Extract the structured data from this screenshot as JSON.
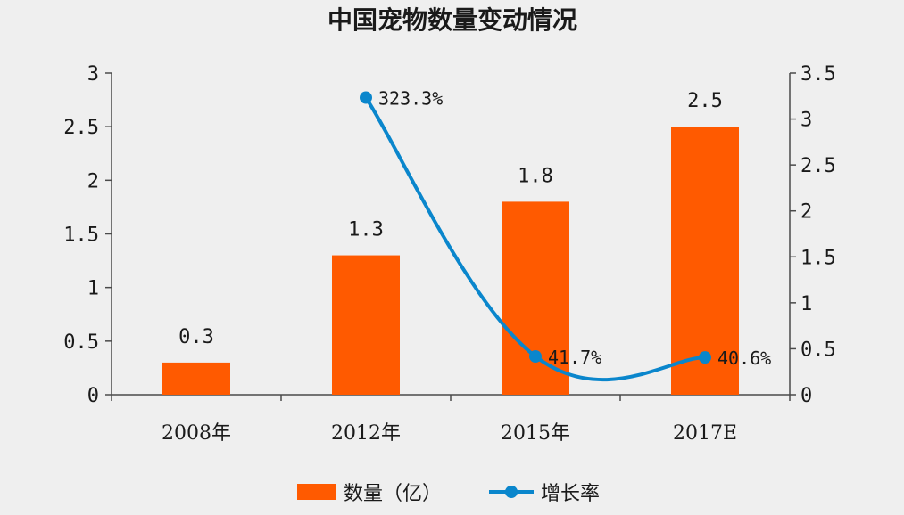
{
  "chart_data": {
    "type": "bar",
    "title": "中国宠物数量变动情况",
    "categories": [
      "2008年",
      "2012年",
      "2015年",
      "2017E"
    ],
    "series": [
      {
        "name": "数量（亿）",
        "type": "bar",
        "axis": "left",
        "color": "#ff5a00",
        "values": [
          0.3,
          1.3,
          1.8,
          2.5
        ],
        "labels": [
          "0.3",
          "1.3",
          "1.8",
          "2.5"
        ]
      },
      {
        "name": "增长率",
        "type": "line",
        "axis": "right",
        "color": "#0a86cc",
        "values": [
          null,
          3.233,
          0.417,
          0.406
        ],
        "labels": [
          "",
          "323.3%",
          "41.7%",
          "40.6%"
        ]
      }
    ],
    "y_left": {
      "min": 0,
      "max": 3,
      "ticks": [
        "0",
        "0.5",
        "1",
        "1.5",
        "2",
        "2.5",
        "3"
      ]
    },
    "y_right": {
      "min": 0,
      "max": 3.5,
      "ticks": [
        "0",
        "0.5",
        "1",
        "1.5",
        "2",
        "2.5",
        "3",
        "3.5"
      ]
    },
    "legend_position": "bottom",
    "grid": false
  }
}
